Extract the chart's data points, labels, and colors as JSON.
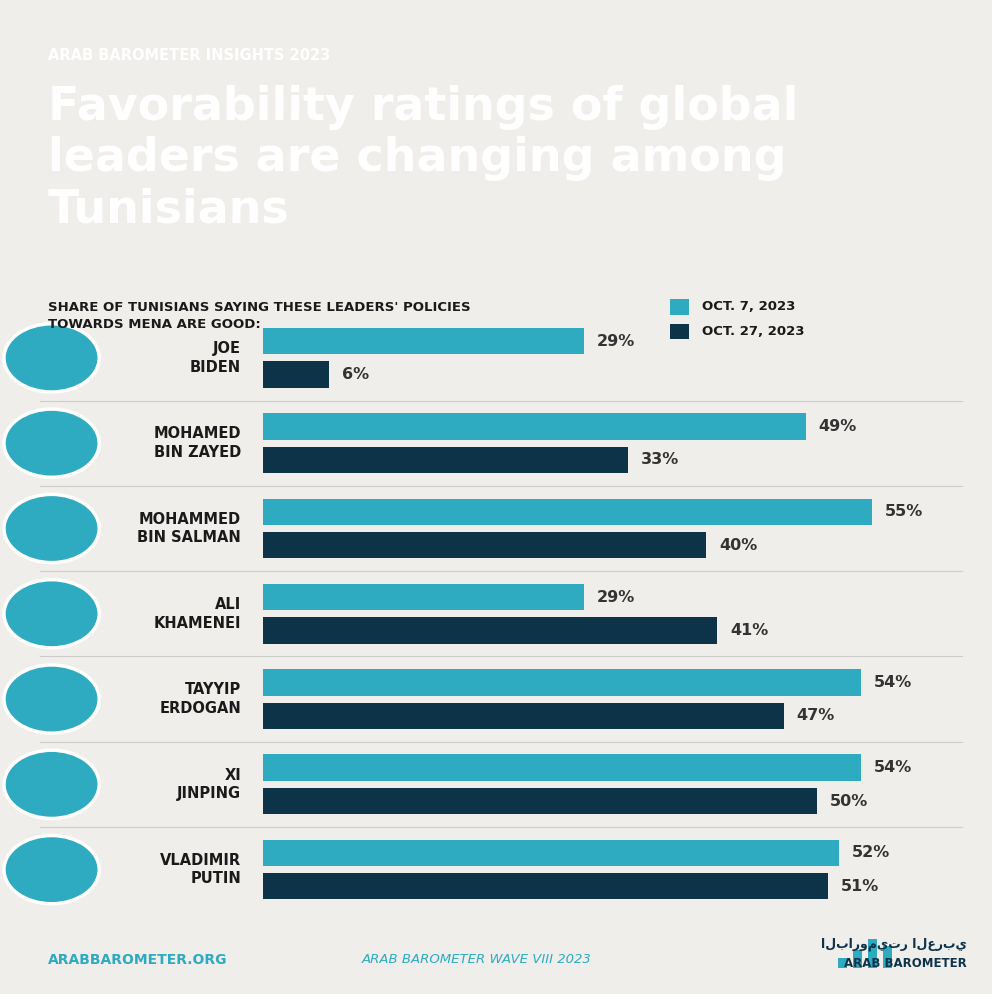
{
  "subtitle": "ARAB BAROMETER INSIGHTS 2023",
  "title": "Favorability ratings of global\nleaders are changing among\nTunisians",
  "header_bg": "#2eaac1",
  "body_bg": "#f0eeeb",
  "chart_label": "SHARE OF TUNISIANS SAYING THESE LEADERS' POLICIES\nTOWARDS MENA ARE GOOD:",
  "legend_oct7": "OCT. 7, 2023",
  "legend_oct27": "OCT. 27, 2023",
  "color_oct7": "#2eaac1",
  "color_oct27": "#0d3349",
  "leaders": [
    {
      "name": "JOE\nBIDEN",
      "oct7": 29,
      "oct27": 6
    },
    {
      "name": "MOHAMED\nBIN ZAYED",
      "oct7": 49,
      "oct27": 33
    },
    {
      "name": "MOHAMMED\nBIN SALMAN",
      "oct7": 55,
      "oct27": 40
    },
    {
      "name": "ALI\nKHAMENEI",
      "oct7": 29,
      "oct27": 41
    },
    {
      "name": "TAYYIP\nERDOGAN",
      "oct7": 54,
      "oct27": 47
    },
    {
      "name": "XI\nJINPING",
      "oct7": 54,
      "oct27": 50
    },
    {
      "name": "VLADIMIR\nPUTIN",
      "oct7": 52,
      "oct27": 51
    }
  ],
  "footer_left": "ARABBAROMETER.ORG",
  "footer_center": "ARAB BAROMETER WAVE VIII 2023",
  "footer_color_left": "#2eaac1",
  "footer_color_center": "#2eaac1",
  "bar_label_fontsize": 11.5,
  "leader_name_fontsize": 10.5
}
